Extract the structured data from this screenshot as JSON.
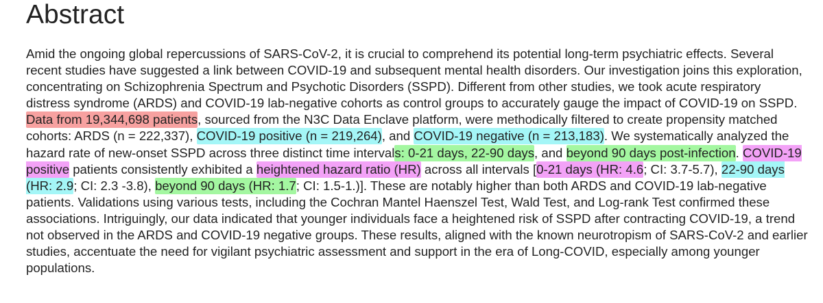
{
  "heading": "Abstract",
  "colors": {
    "red": "#f7a1a0",
    "cyan": "#a4f6f7",
    "green": "#a4f7a1",
    "magenta": "#f3a2f7"
  },
  "segments": [
    {
      "text": "Amid the ongoing global repercussions of SARS-CoV-2, it is crucial to comprehend its potential long-term psychiatric effects. Several recent studies have suggested a link between COVID-19 and subsequent mental health disorders. Our investigation joins this exploration, concentrating on Schizophrenia Spectrum and Psychotic Disorders (SSPD). Different from other studies, we took acute respiratory distress syndrome (ARDS) and COVID-19 lab-negative cohorts as control groups to accurately gauge the impact of COVID-19 on SSPD. "
    },
    {
      "text": "Data from 19,344,698 patients",
      "highlight": "red"
    },
    {
      "text": ", sourced from the N3C Data Enclave platform, were methodically filtered to create propensity matched cohorts: ARDS (n = 222,337), "
    },
    {
      "text": "COVID-19 positive (n = 219,264)",
      "highlight": "cyan"
    },
    {
      "text": ", and "
    },
    {
      "text": "COVID-19 negative (n = 213,183)",
      "highlight": "cyan"
    },
    {
      "text": ". We systematically analyzed the hazard rate of new-onset SSPD across three distinct time interval"
    },
    {
      "text": "s: 0-21 days, 22-90 days",
      "highlight": "green"
    },
    {
      "text": ", and "
    },
    {
      "text": "beyond 90 days post-infection",
      "highlight": "green"
    },
    {
      "text": ". "
    },
    {
      "text": "COVID-19 positive",
      "highlight": "magenta"
    },
    {
      "text": " patients consistently exhibited a "
    },
    {
      "text": "heightened hazard ratio (HR)",
      "highlight": "magenta"
    },
    {
      "text": " across all intervals ["
    },
    {
      "text": "0-21 days (HR: 4.6",
      "highlight": "magenta"
    },
    {
      "text": "; CI: 3.7-5.7), "
    },
    {
      "text": "22-90 days (HR: 2.9",
      "highlight": "cyan"
    },
    {
      "text": "; CI: 2.3 -3.8), "
    },
    {
      "text": "beyond 90 days (HR: 1.7",
      "highlight": "green"
    },
    {
      "text": "; CI: 1.5-1.)]. These are notably higher than both ARDS and COVID-19 lab-negative patients. Validations using various tests, including the Cochran Mantel Haenszel Test, Wald Test, and Log-rank Test confirmed these associations. Intriguingly, our data indicated that younger individuals face a heightened risk of SSPD after contracting COVID-19, a trend not observed in the ARDS and COVID-19 negative groups. These results, aligned with the known neurotropism of SARS-CoV-2 and earlier studies, accentuate the need for vigilant psychiatric assessment and support in the era of Long-COVID, especially among younger populations."
    }
  ]
}
